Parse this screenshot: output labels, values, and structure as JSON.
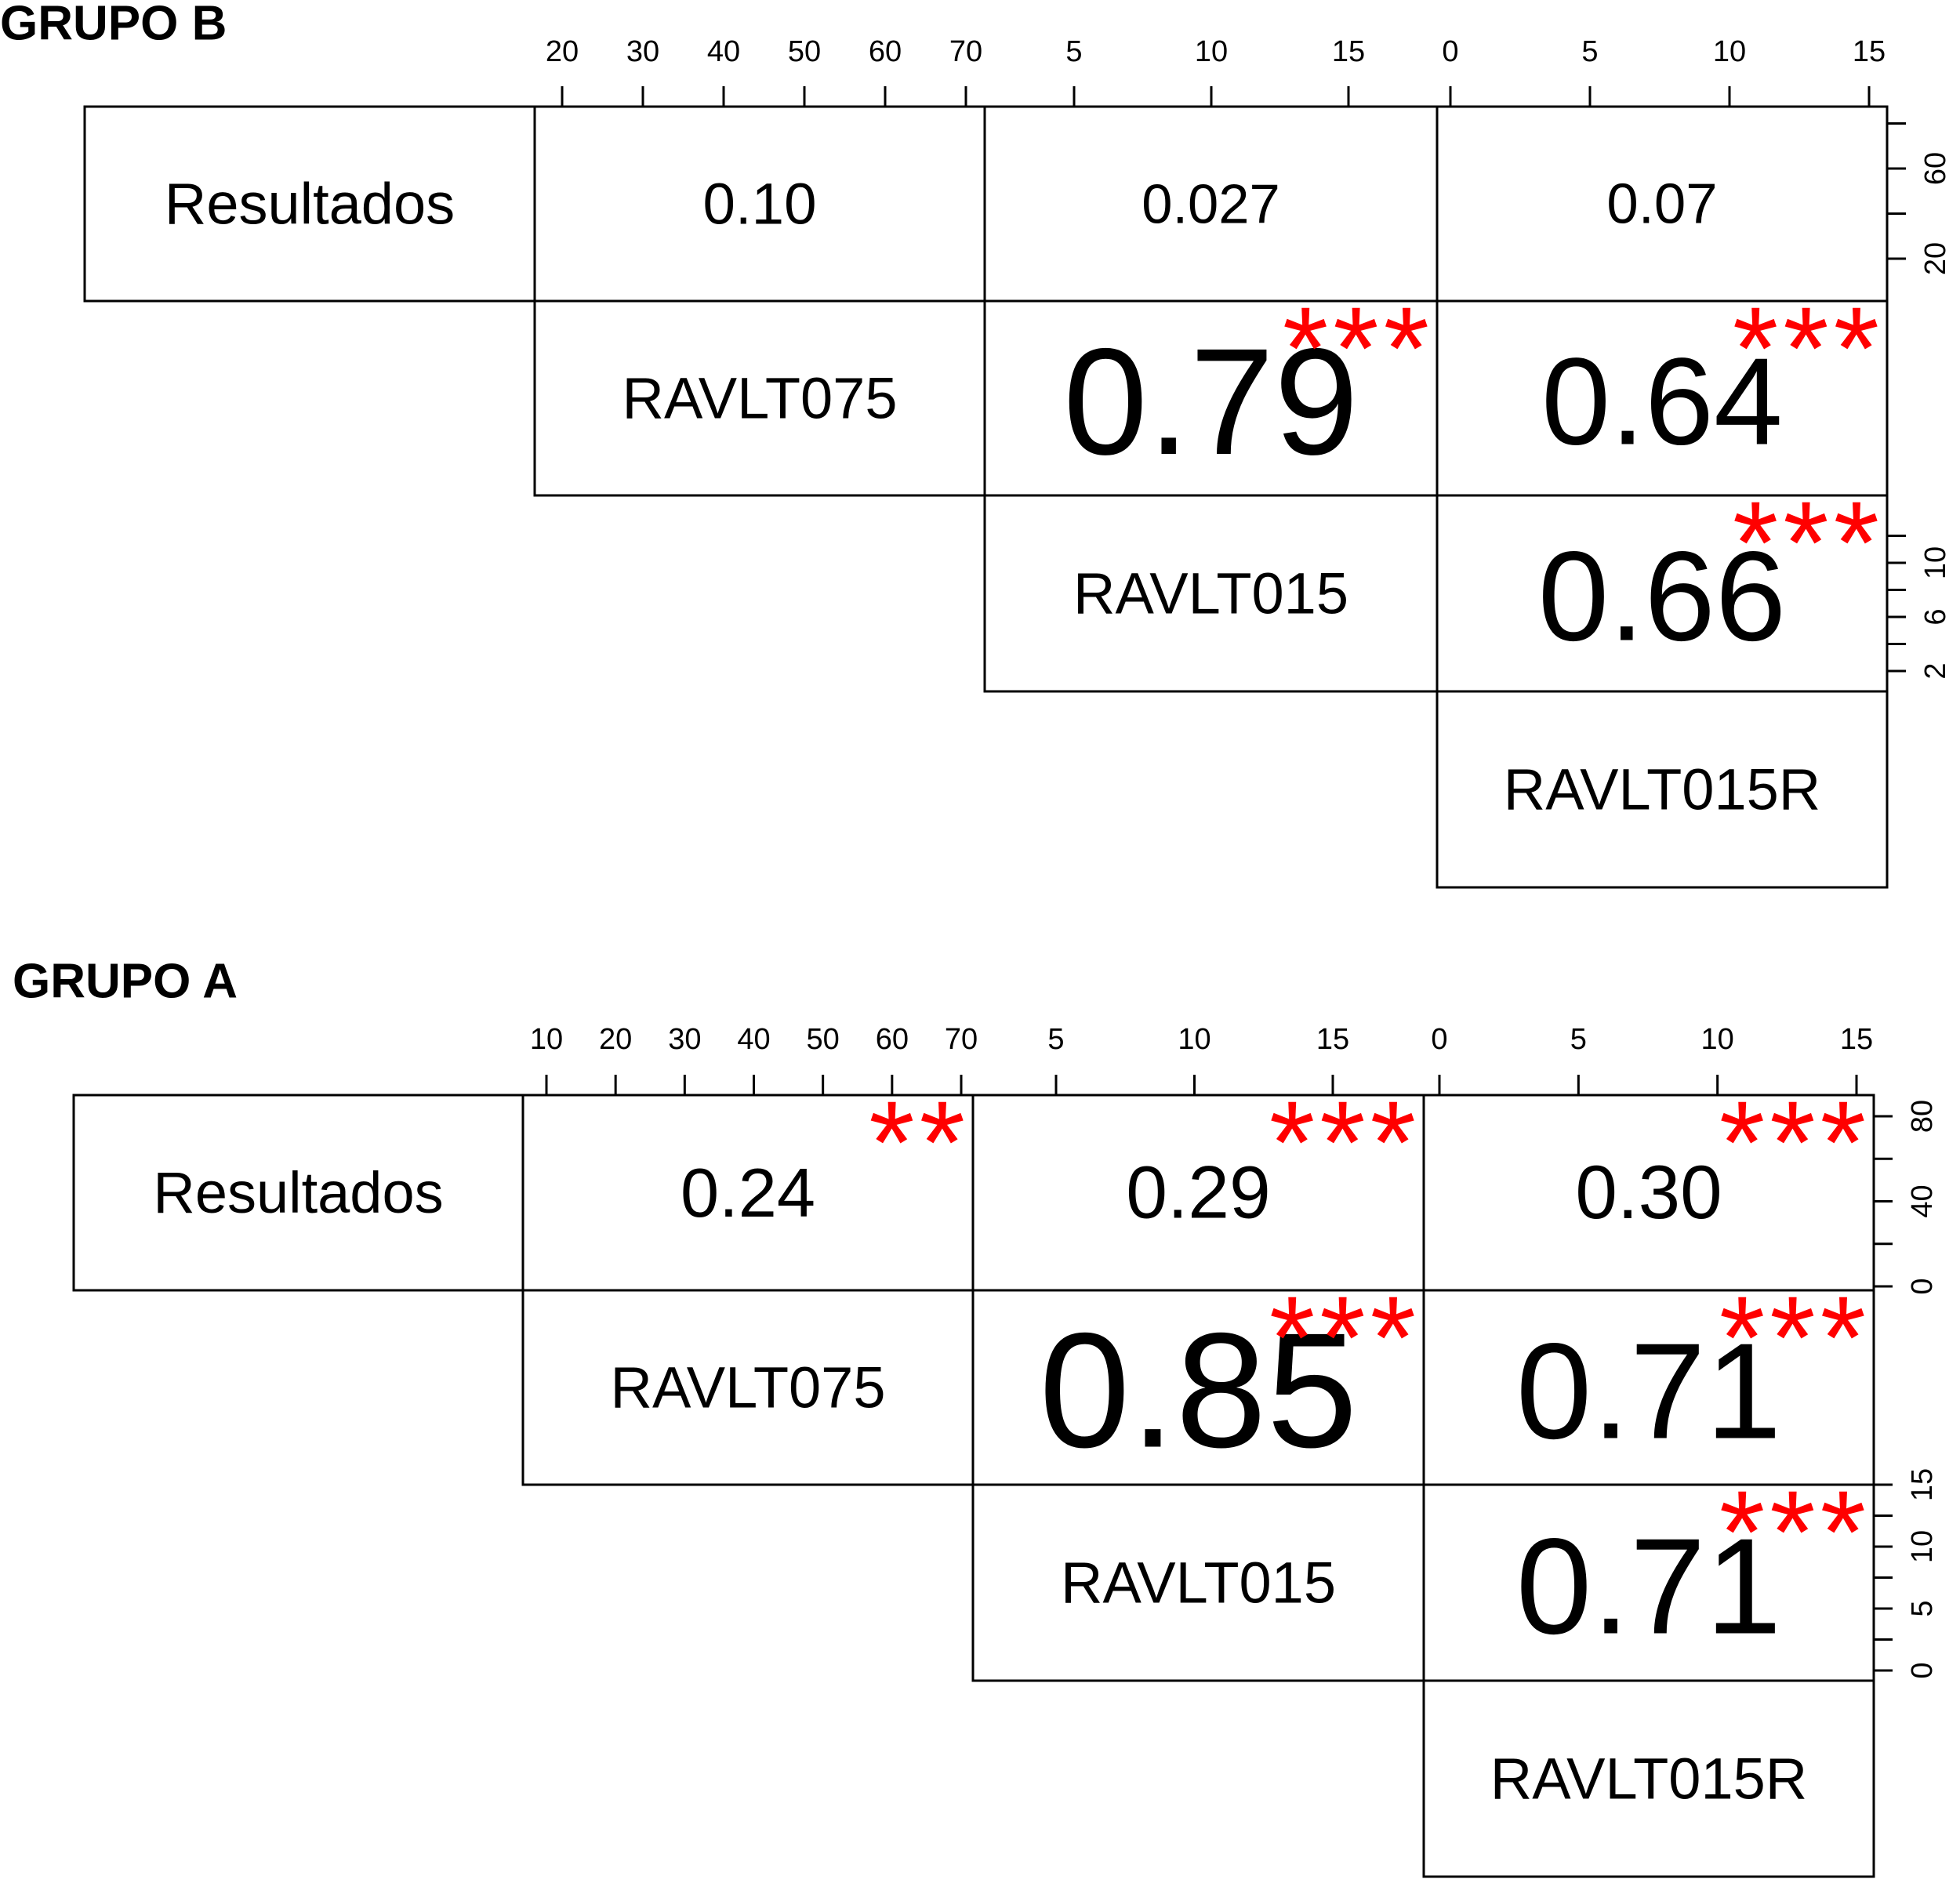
{
  "chart_data": [
    {
      "type": "table",
      "title": "GRUPO B",
      "variables": [
        "Resultados",
        "RAVLT075",
        "RAVLT015",
        "RAVLT015R"
      ],
      "correlations": [
        {
          "row": 0,
          "col": 1,
          "value": "0.10",
          "stars": ""
        },
        {
          "row": 0,
          "col": 2,
          "value": "0.027",
          "stars": ""
        },
        {
          "row": 0,
          "col": 3,
          "value": "0.07",
          "stars": ""
        },
        {
          "row": 1,
          "col": 2,
          "value": "0.79",
          "stars": "***"
        },
        {
          "row": 1,
          "col": 3,
          "value": "0.64",
          "stars": "***"
        },
        {
          "row": 2,
          "col": 3,
          "value": "0.66",
          "stars": "***"
        }
      ],
      "top_axes": [
        {
          "col": 1,
          "ticks": [
            20,
            30,
            40,
            50,
            60,
            70
          ]
        },
        {
          "col": 2,
          "ticks": [
            5,
            10,
            15
          ]
        },
        {
          "col": 3,
          "ticks": [
            0,
            5,
            10,
            15
          ]
        }
      ],
      "right_axes": [
        {
          "row": 0,
          "ticks": [
            20,
            60
          ]
        },
        {
          "row": 2,
          "ticks": [
            2,
            6,
            10
          ]
        }
      ]
    },
    {
      "type": "table",
      "title": "GRUPO A",
      "variables": [
        "Resultados",
        "RAVLT075",
        "RAVLT015",
        "RAVLT015R"
      ],
      "correlations": [
        {
          "row": 0,
          "col": 1,
          "value": "0.24",
          "stars": "**"
        },
        {
          "row": 0,
          "col": 2,
          "value": "0.29",
          "stars": "***"
        },
        {
          "row": 0,
          "col": 3,
          "value": "0.30",
          "stars": "***"
        },
        {
          "row": 1,
          "col": 2,
          "value": "0.85",
          "stars": "***"
        },
        {
          "row": 1,
          "col": 3,
          "value": "0.71",
          "stars": "***"
        },
        {
          "row": 2,
          "col": 3,
          "value": "0.71",
          "stars": "***"
        }
      ],
      "top_axes": [
        {
          "col": 1,
          "ticks": [
            10,
            20,
            30,
            40,
            50,
            60,
            70
          ]
        },
        {
          "col": 2,
          "ticks": [
            5,
            10,
            15
          ]
        },
        {
          "col": 3,
          "ticks": [
            0,
            5,
            10,
            15
          ]
        }
      ],
      "right_axes": [
        {
          "row": 0,
          "ticks": [
            0,
            40,
            80
          ]
        },
        {
          "row": 2,
          "ticks": [
            0,
            5,
            10,
            15
          ]
        }
      ]
    }
  ],
  "colors": {
    "stars": "#ff0000",
    "text": "#000000",
    "lines": "#000000"
  }
}
